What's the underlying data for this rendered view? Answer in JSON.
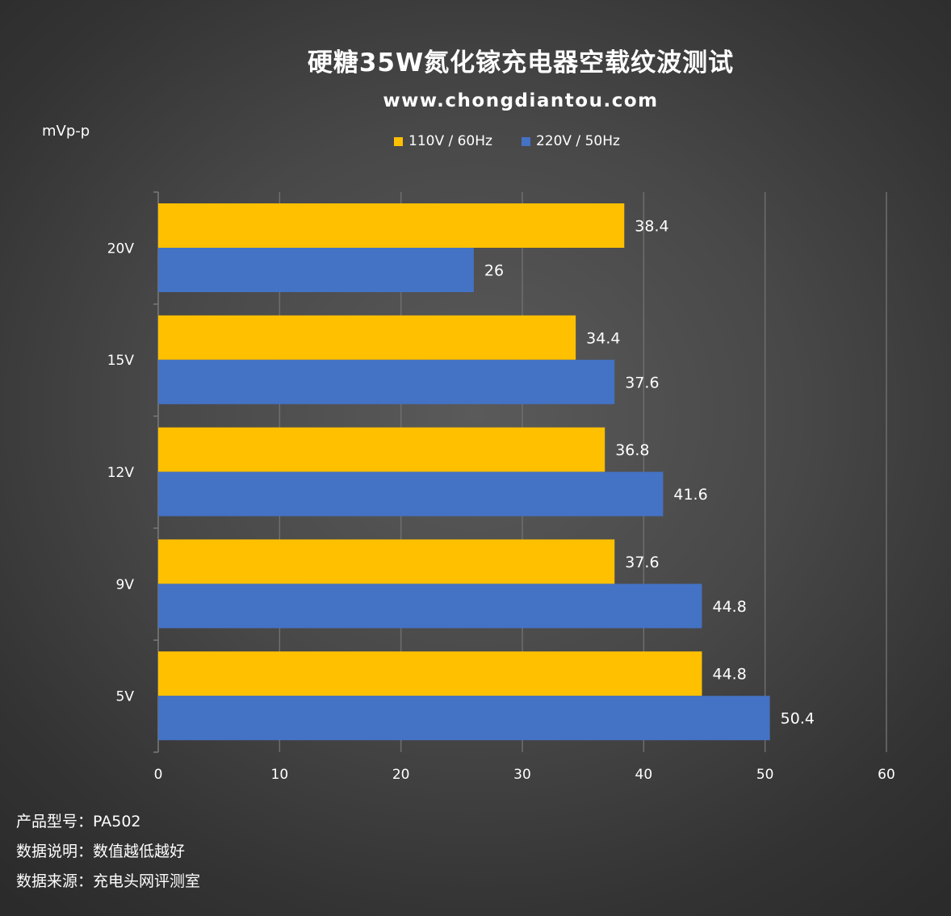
{
  "title": "硬糖35W氮化镓充电器空载纹波测试",
  "website": "www.chongdiantou.com",
  "unit_label": "mVp-p",
  "notes": [
    {
      "label": "产品型号：",
      "value": "PA502"
    },
    {
      "label": "数据说明：",
      "value": "数值越低越好"
    },
    {
      "label": "数据来源：",
      "value": "充电头网评测室"
    }
  ],
  "chart_data": {
    "type": "bar",
    "orientation": "horizontal",
    "title": "硬糖35W氮化镓充电器空载纹波测试",
    "subtitle": "www.chongdiantou.com",
    "xlabel": "",
    "ylabel": "mVp-p",
    "categories": [
      "20V",
      "15V",
      "12V",
      "9V",
      "5V"
    ],
    "series": [
      {
        "name": "110V / 60Hz",
        "color": "#ffc000",
        "values": [
          38.4,
          34.4,
          36.8,
          37.6,
          44.8
        ]
      },
      {
        "name": "220V / 50Hz",
        "color": "#4472c4",
        "values": [
          26,
          37.6,
          41.6,
          44.8,
          50.4
        ]
      }
    ],
    "xlim": [
      0,
      60
    ],
    "xticks": [
      0,
      10,
      20,
      30,
      40,
      50,
      60
    ],
    "grid": true,
    "legend": "top-center",
    "data_labels": true
  }
}
